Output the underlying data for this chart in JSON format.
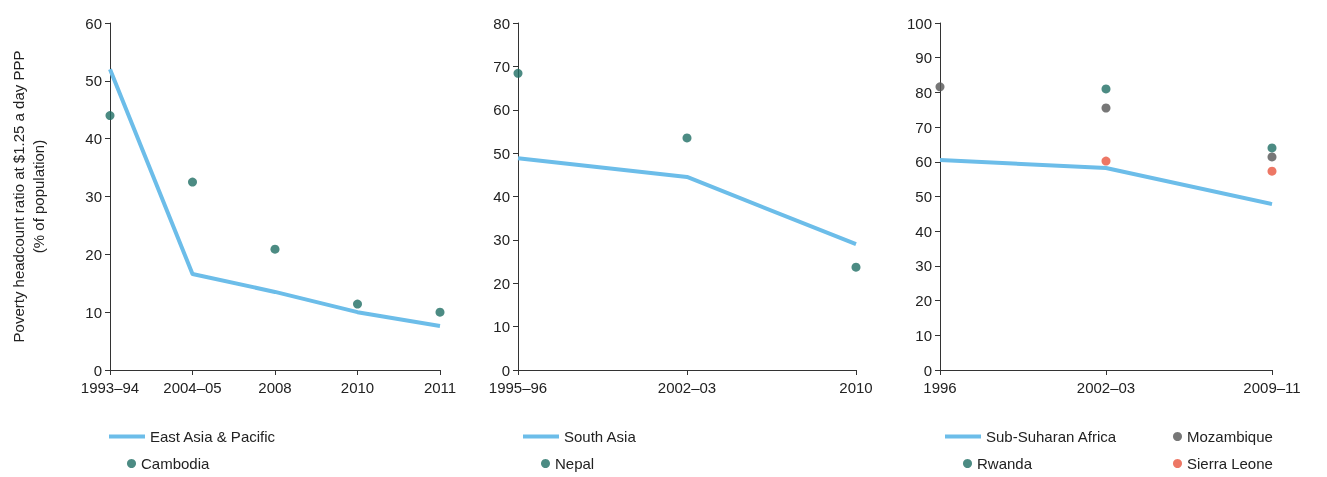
{
  "chart_data": [
    {
      "type": "line",
      "ylabel": "Poverty headcount ratio at $1.25 a day PPP\n(% of population)",
      "categories": [
        "1993–94",
        "2004–05",
        "2008",
        "2010",
        "2011"
      ],
      "ylim": [
        0,
        60
      ],
      "yticks": [
        0,
        10,
        20,
        30,
        40,
        50,
        60
      ],
      "grid": false,
      "legend": "bottom",
      "series": [
        {
          "name": "East Asia & Pacific",
          "marker": "none",
          "color": "#6cbde9",
          "values": [
            52,
            16.6,
            13.5,
            10,
            7.6
          ]
        },
        {
          "name": "Cambodia",
          "type": "scatter",
          "marker": "circle",
          "color": "#1f6e64",
          "values": [
            44,
            32.5,
            20.9,
            11.4,
            10
          ]
        }
      ]
    },
    {
      "type": "line",
      "categories": [
        "1995–96",
        "2002–03",
        "2010"
      ],
      "ylim": [
        0,
        80
      ],
      "yticks": [
        0,
        10,
        20,
        30,
        40,
        50,
        60,
        70,
        80
      ],
      "grid": false,
      "legend": "bottom",
      "series": [
        {
          "name": "South Asia",
          "marker": "none",
          "color": "#6cbde9",
          "values": [
            48.8,
            44.5,
            29
          ]
        },
        {
          "name": "Nepal",
          "type": "scatter",
          "marker": "circle",
          "color": "#1f6e64",
          "values": [
            68.4,
            53.5,
            23.7
          ]
        }
      ]
    },
    {
      "type": "line",
      "categories": [
        "1996",
        "2002–03",
        "2009–11"
      ],
      "ylim": [
        0,
        100
      ],
      "yticks": [
        0,
        10,
        20,
        30,
        40,
        50,
        60,
        70,
        80,
        90,
        100
      ],
      "grid": false,
      "legend": "bottom",
      "series": [
        {
          "name": "Sub-Suharan Africa",
          "marker": "none",
          "color": "#6cbde9",
          "values": [
            60.5,
            58.2,
            47.8
          ]
        },
        {
          "name": "Mozambique",
          "type": "scatter",
          "marker": "circle",
          "color": "#555555",
          "values": [
            81.6,
            75.5,
            61.4
          ]
        },
        {
          "name": "Rwanda",
          "type": "scatter",
          "marker": "circle",
          "color": "#1f6e64",
          "values": [
            null,
            81,
            64
          ]
        },
        {
          "name": "Sierra Leone",
          "type": "scatter",
          "marker": "circle",
          "color": "#e8553f",
          "values": [
            null,
            60.2,
            57.3
          ]
        }
      ]
    }
  ]
}
